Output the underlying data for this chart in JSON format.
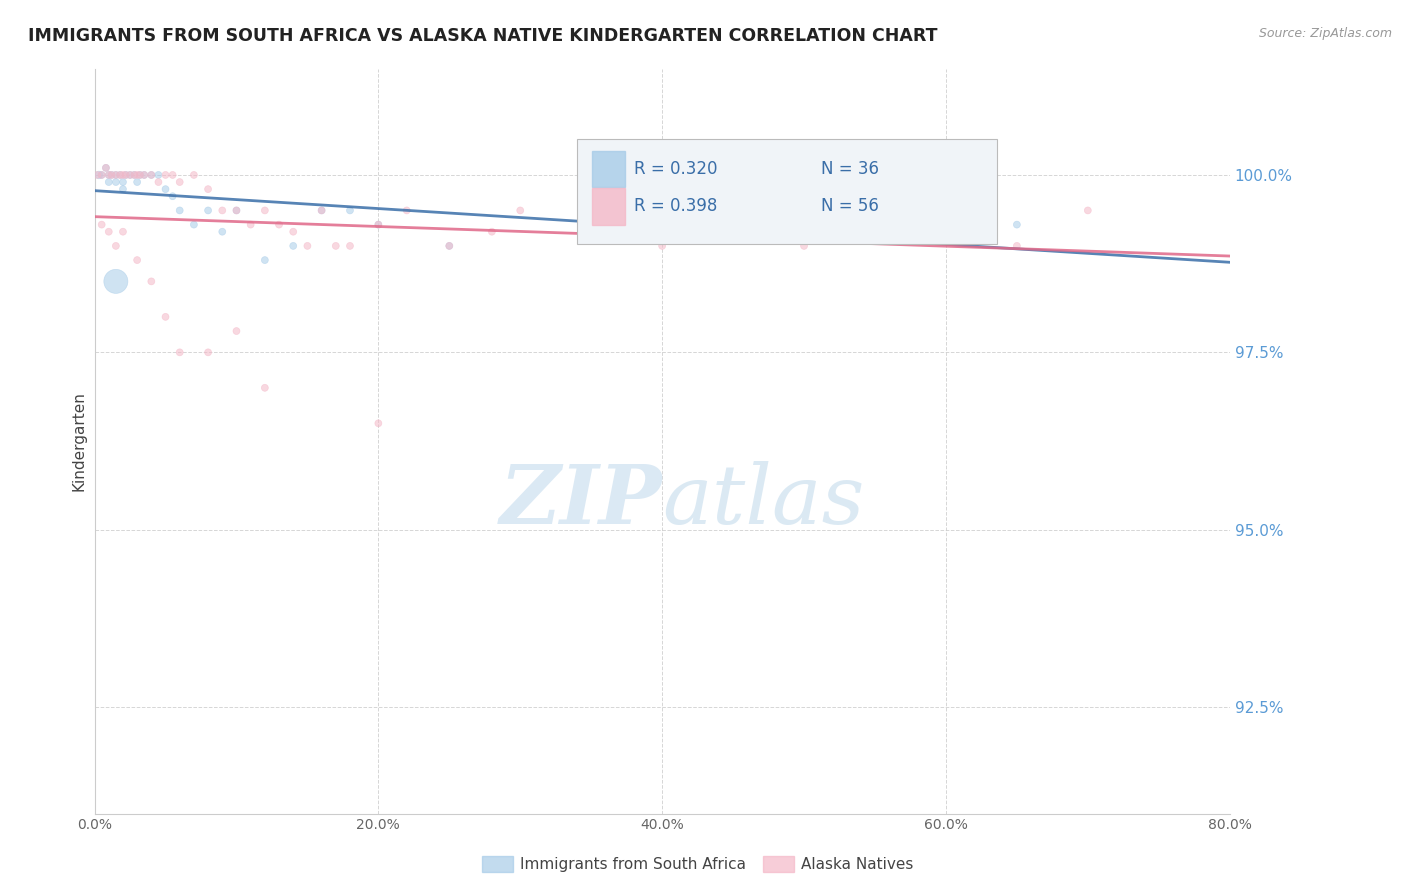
{
  "title": "IMMIGRANTS FROM SOUTH AFRICA VS ALASKA NATIVE KINDERGARTEN CORRELATION CHART",
  "source": "Source: ZipAtlas.com",
  "xlabel_vals": [
    0,
    20,
    40,
    60,
    80
  ],
  "ylabel_vals": [
    92.5,
    95.0,
    97.5,
    100.0
  ],
  "xmin": 0,
  "xmax": 80,
  "ymin": 91.0,
  "ymax": 101.5,
  "legend_label1": "Immigrants from South Africa",
  "legend_label2": "Alaska Natives",
  "R_blue": 0.32,
  "N_blue": 36,
  "R_pink": 0.398,
  "N_pink": 56,
  "blue_color": "#a8cce8",
  "pink_color": "#f4b8c8",
  "blue_line_color": "#3a6ea8",
  "pink_line_color": "#e06888",
  "tick_color": "#5b9bd5",
  "watermark_color": "#cce0f0",
  "blue_scatter_x": [
    0.3,
    0.5,
    0.8,
    1.0,
    1.0,
    1.2,
    1.5,
    1.5,
    1.8,
    2.0,
    2.0,
    2.2,
    2.5,
    2.8,
    3.0,
    3.2,
    3.5,
    4.0,
    4.5,
    5.0,
    5.5,
    6.0,
    7.0,
    8.0,
    9.0,
    10.0,
    12.0,
    14.0,
    16.0,
    18.0,
    20.0,
    25.0,
    35.0,
    55.0,
    65.0,
    1.5
  ],
  "blue_scatter_y": [
    100.0,
    100.0,
    100.1,
    100.0,
    99.9,
    100.0,
    100.0,
    99.9,
    100.0,
    99.9,
    99.8,
    100.0,
    100.0,
    100.0,
    99.9,
    100.0,
    100.0,
    100.0,
    100.0,
    99.8,
    99.7,
    99.5,
    99.3,
    99.5,
    99.2,
    99.5,
    98.8,
    99.0,
    99.5,
    99.5,
    99.3,
    99.0,
    99.2,
    99.5,
    99.3,
    98.5
  ],
  "blue_scatter_size": [
    30,
    25,
    25,
    25,
    25,
    25,
    25,
    25,
    25,
    25,
    25,
    25,
    25,
    25,
    25,
    25,
    25,
    25,
    25,
    25,
    25,
    25,
    25,
    25,
    25,
    25,
    25,
    25,
    25,
    25,
    25,
    25,
    25,
    25,
    25,
    300
  ],
  "pink_scatter_x": [
    0.2,
    0.5,
    0.8,
    1.0,
    1.2,
    1.5,
    1.8,
    2.0,
    2.2,
    2.5,
    2.8,
    3.0,
    3.2,
    3.5,
    4.0,
    4.5,
    5.0,
    5.5,
    6.0,
    7.0,
    8.0,
    9.0,
    10.0,
    11.0,
    12.0,
    13.0,
    14.0,
    15.0,
    16.0,
    17.0,
    18.0,
    20.0,
    22.0,
    25.0,
    28.0,
    30.0,
    35.0,
    40.0,
    45.0,
    50.0,
    55.0,
    60.0,
    65.0,
    70.0,
    0.5,
    1.0,
    1.5,
    2.0,
    3.0,
    4.0,
    5.0,
    6.0,
    8.0,
    10.0,
    12.0,
    20.0
  ],
  "pink_scatter_y": [
    100.0,
    100.0,
    100.1,
    100.0,
    100.0,
    100.0,
    100.0,
    100.0,
    100.0,
    100.0,
    100.0,
    100.0,
    100.0,
    100.0,
    100.0,
    99.9,
    100.0,
    100.0,
    99.9,
    100.0,
    99.8,
    99.5,
    99.5,
    99.3,
    99.5,
    99.3,
    99.2,
    99.0,
    99.5,
    99.0,
    99.0,
    99.3,
    99.5,
    99.0,
    99.2,
    99.5,
    99.3,
    99.0,
    99.5,
    99.0,
    99.5,
    99.3,
    99.0,
    99.5,
    99.3,
    99.2,
    99.0,
    99.2,
    98.8,
    98.5,
    98.0,
    97.5,
    97.5,
    97.8,
    97.0,
    96.5
  ],
  "pink_scatter_size": [
    25,
    25,
    25,
    25,
    25,
    25,
    25,
    25,
    25,
    25,
    25,
    25,
    25,
    25,
    25,
    25,
    25,
    25,
    25,
    25,
    25,
    25,
    25,
    25,
    25,
    25,
    25,
    25,
    25,
    25,
    25,
    25,
    25,
    25,
    25,
    25,
    25,
    25,
    25,
    25,
    25,
    25,
    25,
    25,
    25,
    25,
    25,
    25,
    25,
    25,
    25,
    25,
    25,
    25,
    25,
    25
  ]
}
